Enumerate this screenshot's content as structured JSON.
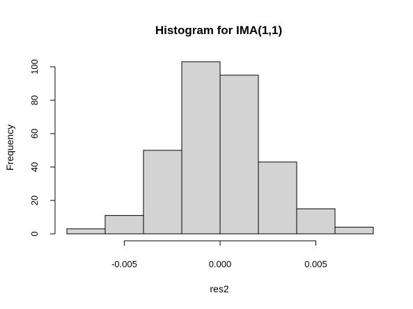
{
  "chart_data": {
    "type": "bar",
    "title": "Histogram for IMA(1,1)",
    "xlabel": "res2",
    "ylabel": "Frequency",
    "bins": [
      {
        "start": -0.008,
        "end": -0.006,
        "count": 3
      },
      {
        "start": -0.006,
        "end": -0.004,
        "count": 11
      },
      {
        "start": -0.004,
        "end": -0.002,
        "count": 50
      },
      {
        "start": -0.002,
        "end": 0.0,
        "count": 103
      },
      {
        "start": 0.0,
        "end": 0.002,
        "count": 95
      },
      {
        "start": 0.002,
        "end": 0.004,
        "count": 43
      },
      {
        "start": 0.004,
        "end": 0.006,
        "count": 15
      },
      {
        "start": 0.006,
        "end": 0.008,
        "count": 4
      }
    ],
    "xlim": [
      -0.008,
      0.008
    ],
    "ylim": [
      0,
      105
    ],
    "x_ticks": [
      -0.005,
      0.0,
      0.005
    ],
    "x_tick_labels": [
      "-0.005",
      "0.000",
      "0.005"
    ],
    "y_ticks": [
      0,
      20,
      40,
      60,
      80,
      100
    ],
    "y_tick_labels": [
      "0",
      "20",
      "40",
      "60",
      "80",
      "100"
    ],
    "grid": false,
    "colors": {
      "bar_fill": "#d3d3d3",
      "bar_stroke": "#000000"
    }
  }
}
